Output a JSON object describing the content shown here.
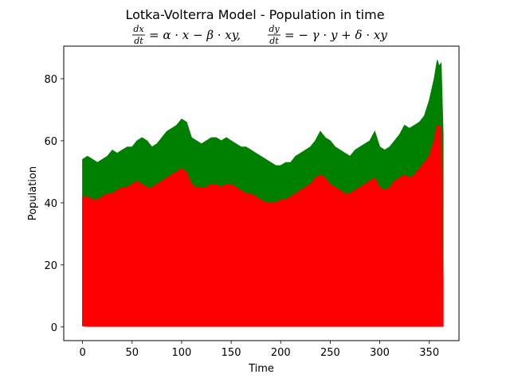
{
  "chart_data": {
    "type": "line",
    "title": "Lotka-Volterra Model - Population in time",
    "equation_left": {
      "numerator": "dx",
      "denominator": "dt",
      "rhs": "= α · x − β · xy,"
    },
    "equation_right": {
      "numerator": "dy",
      "denominator": "dt",
      "rhs": "= − γ · y + δ · xy"
    },
    "xlabel": "Time",
    "ylabel": "Population",
    "xlim": [
      -19,
      380
    ],
    "ylim": [
      -4.4,
      90.5
    ],
    "xticks": [
      0,
      50,
      100,
      150,
      200,
      250,
      300,
      350
    ],
    "yticks": [
      0,
      20,
      40,
      60,
      80
    ],
    "grid": false,
    "legend": "none",
    "series": [
      {
        "color": "#008000",
        "envelope": "peak",
        "x": [
          0,
          5,
          10,
          15,
          20,
          25,
          30,
          35,
          40,
          45,
          50,
          55,
          60,
          65,
          70,
          75,
          80,
          85,
          90,
          95,
          100,
          105,
          110,
          115,
          120,
          125,
          130,
          135,
          140,
          145,
          150,
          155,
          160,
          165,
          170,
          175,
          180,
          185,
          190,
          195,
          200,
          205,
          210,
          215,
          220,
          225,
          230,
          235,
          240,
          245,
          250,
          255,
          260,
          265,
          270,
          275,
          280,
          285,
          290,
          295,
          300,
          305,
          310,
          315,
          320,
          325,
          330,
          335,
          340,
          345,
          350,
          355,
          358,
          360,
          362,
          364
        ],
        "max": [
          54,
          55,
          54,
          53,
          54,
          55,
          57,
          56,
          57,
          58,
          58,
          60,
          61,
          60,
          58,
          59,
          61,
          63,
          64,
          65,
          67,
          66,
          61,
          60,
          59,
          60,
          61,
          61,
          60,
          61,
          60,
          59,
          58,
          58,
          57,
          56,
          55,
          54,
          53,
          52,
          52,
          53,
          53,
          55,
          56,
          57,
          58,
          60,
          63,
          61,
          60,
          58,
          57,
          56,
          55,
          57,
          58,
          59,
          60,
          63,
          58,
          57,
          58,
          60,
          62,
          65,
          64,
          65,
          66,
          68,
          73,
          80,
          86,
          84,
          85,
          62
        ],
        "min": [
          0.6,
          0.5,
          0.5,
          0.5,
          0.5,
          0.5,
          0.5,
          0.5,
          0.5,
          0.5,
          0.5,
          0.5,
          0.5,
          0.5,
          0.5,
          0.5,
          0.5,
          0.5,
          0.5,
          0.5,
          0.5,
          0.5,
          0.5,
          0.5,
          0.5,
          0.5,
          0.5,
          0.5,
          0.5,
          0.5,
          0.5,
          0.5,
          0.5,
          0.5,
          0.5,
          0.5,
          0.5,
          0.5,
          0.5,
          0.5,
          0.5,
          0.5,
          0.5,
          0.5,
          0.5,
          0.5,
          0.5,
          0.5,
          0.5,
          0.5,
          0.5,
          0.5,
          0.5,
          0.5,
          0.5,
          0.5,
          0.5,
          0.5,
          0.5,
          0.5,
          0.5,
          0.5,
          0.5,
          0.5,
          0.5,
          0.5,
          0.5,
          0.5,
          0.5,
          0.5,
          0.5,
          0.5,
          0.5,
          0.5,
          0.5,
          0.5
        ]
      },
      {
        "color": "#ff0000",
        "envelope": "peak",
        "x": [
          0,
          5,
          10,
          15,
          20,
          25,
          30,
          35,
          40,
          45,
          50,
          55,
          60,
          65,
          70,
          75,
          80,
          85,
          90,
          95,
          100,
          105,
          110,
          115,
          120,
          125,
          130,
          135,
          140,
          145,
          150,
          155,
          160,
          165,
          170,
          175,
          180,
          185,
          190,
          195,
          200,
          205,
          210,
          215,
          220,
          225,
          230,
          235,
          240,
          245,
          250,
          255,
          260,
          265,
          270,
          275,
          280,
          285,
          290,
          295,
          300,
          305,
          310,
          315,
          320,
          325,
          330,
          335,
          340,
          345,
          350,
          355,
          358,
          360,
          362,
          364
        ],
        "max": [
          42,
          42,
          41,
          41,
          42,
          43,
          43,
          44,
          45,
          45,
          46,
          47,
          46,
          45,
          45,
          46,
          47,
          48,
          49,
          50,
          51,
          50,
          46,
          45,
          45,
          45,
          46,
          46,
          45,
          46,
          46,
          45,
          44,
          43,
          43,
          42,
          41,
          40,
          40,
          40,
          41,
          41,
          42,
          43,
          44,
          45,
          46,
          48,
          49,
          48,
          46,
          45,
          44,
          43,
          43,
          44,
          45,
          46,
          47,
          48,
          45,
          44,
          45,
          47,
          48,
          49,
          48,
          49,
          51,
          53,
          55,
          60,
          65,
          65,
          64,
          15
        ],
        "min": [
          0.3,
          0.2,
          0.2,
          0.2,
          0.2,
          0.2,
          0.2,
          0.2,
          0.2,
          0.2,
          0.2,
          0.2,
          0.2,
          0.2,
          0.2,
          0.2,
          0.2,
          0.2,
          0.2,
          0.2,
          0.2,
          0.2,
          0.2,
          0.2,
          0.2,
          0.2,
          0.2,
          0.2,
          0.2,
          0.2,
          0.2,
          0.2,
          0.2,
          0.2,
          0.2,
          0.2,
          0.2,
          0.2,
          0.2,
          0.2,
          0.2,
          0.2,
          0.2,
          0.2,
          0.2,
          0.2,
          0.2,
          0.2,
          0.2,
          0.2,
          0.2,
          0.2,
          0.2,
          0.2,
          0.2,
          0.2,
          0.2,
          0.2,
          0.2,
          0.2,
          0.2,
          0.2,
          0.2,
          0.2,
          0.2,
          0.2,
          0.2,
          0.2,
          0.2,
          0.2,
          0.2,
          0.2,
          0.2,
          0.2,
          0.2,
          0.2
        ]
      }
    ]
  }
}
